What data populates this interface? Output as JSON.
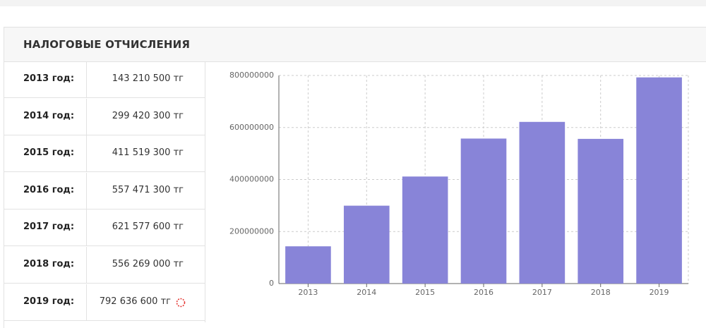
{
  "header": {
    "title": "НАЛОГОВЫЕ ОТЧИСЛЕНИЯ"
  },
  "table": {
    "rows": [
      [
        "2013 год:",
        "143 210 500 тг"
      ],
      [
        "2014 год:",
        "299 420 300 тг"
      ],
      [
        "2015 год:",
        "411 519 300 тг"
      ],
      [
        "2016 год:",
        "557 471 300 тг"
      ],
      [
        "2017 год:",
        "621 577 600 тг"
      ],
      [
        "2018 год:",
        "556 269 000 тг"
      ],
      [
        "2019 год:",
        "792 636 600 тг"
      ]
    ]
  },
  "chart_data": {
    "type": "bar",
    "categories": [
      "2013",
      "2014",
      "2015",
      "2016",
      "2017",
      "2018",
      "2019"
    ],
    "values": [
      143210500,
      299420300,
      411519300,
      557471300,
      621577600,
      556269000,
      792636600
    ],
    "color": "#8884d8",
    "ylim": [
      0,
      800000000
    ],
    "yticks": [
      0,
      200000000,
      400000000,
      600000000,
      800000000
    ],
    "grid": true
  }
}
